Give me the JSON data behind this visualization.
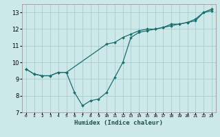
{
  "xlabel": "Humidex (Indice chaleur)",
  "bg_color": "#cce8e8",
  "grid_color": "#aacccc",
  "line_color": "#1a6e6e",
  "series1_x": [
    0,
    1,
    2,
    3,
    4,
    5,
    6,
    7,
    8,
    9,
    10,
    11,
    12,
    13,
    14,
    15,
    16,
    17,
    18,
    19,
    20,
    21,
    22,
    23
  ],
  "series1_y": [
    9.6,
    9.3,
    9.2,
    9.2,
    9.4,
    9.4,
    8.2,
    7.4,
    7.7,
    7.8,
    8.2,
    9.1,
    10.0,
    11.5,
    11.8,
    11.9,
    12.0,
    12.1,
    12.3,
    12.3,
    12.4,
    12.5,
    13.0,
    13.1
  ],
  "series2_x": [
    0,
    1,
    2,
    3,
    4,
    5,
    10,
    11,
    12,
    13,
    14,
    15,
    16,
    17,
    18,
    19,
    20,
    21,
    22,
    23
  ],
  "series2_y": [
    9.6,
    9.3,
    9.2,
    9.2,
    9.4,
    9.4,
    11.1,
    11.2,
    11.5,
    11.7,
    11.9,
    12.0,
    12.0,
    12.1,
    12.2,
    12.3,
    12.4,
    12.6,
    13.0,
    13.2
  ],
  "xlim": [
    -0.5,
    23.5
  ],
  "ylim": [
    7.0,
    13.5
  ],
  "yticks": [
    7,
    8,
    9,
    10,
    11,
    12,
    13
  ],
  "xtick_labels": [
    "0",
    "1",
    "2",
    "3",
    "4",
    "5",
    "6",
    "7",
    "8",
    "9",
    "10",
    "11",
    "12",
    "13",
    "14",
    "15",
    "16",
    "17",
    "18",
    "19",
    "20",
    "21",
    "22",
    "23"
  ],
  "marker": "D",
  "markersize": 2.0,
  "linewidth": 0.9,
  "xlabel_fontsize": 6.5,
  "xlabel_color": "#1a5050",
  "ytick_fontsize": 6.0,
  "xtick_fontsize": 4.5
}
